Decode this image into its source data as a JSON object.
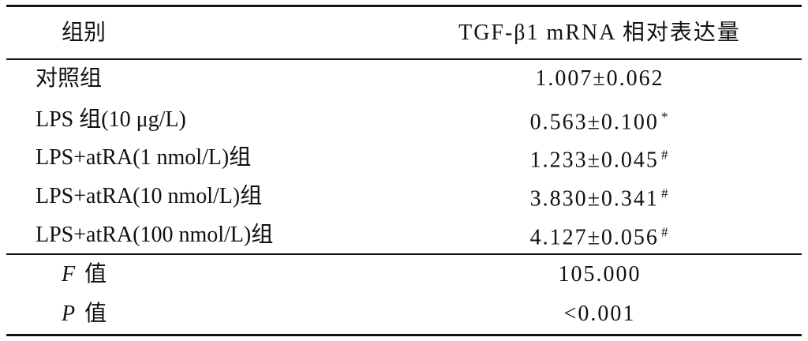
{
  "table": {
    "header": [
      "组别",
      "TGF-β1 mRNA 相对表达量"
    ],
    "rows": [
      {
        "group": "对照组",
        "value": "1.007±0.062"
      },
      {
        "group": "LPS 组(10 μg/L)",
        "value": "0.563±0.100",
        "mark": "*"
      },
      {
        "group": "LPS+atRA(1 nmol/L)组",
        "value": "1.233±0.045",
        "mark": "#"
      },
      {
        "group": "LPS+atRA(10 nmol/L)组",
        "value": "3.830±0.341",
        "mark": "#"
      },
      {
        "group": "LPS+atRA(100 nmol/L)组",
        "value": "4.127±0.056",
        "mark": "#"
      }
    ],
    "stats": [
      {
        "symbol": "F",
        "label": "值",
        "value": "105.000"
      },
      {
        "symbol": "P",
        "label": "值",
        "value": "<0.001"
      }
    ]
  }
}
